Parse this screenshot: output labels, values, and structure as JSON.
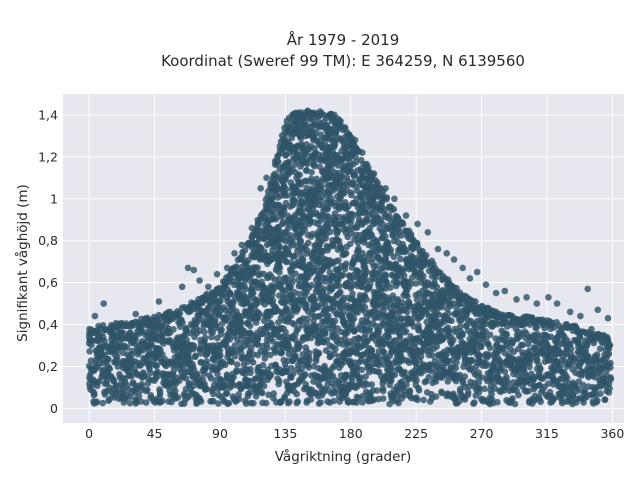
{
  "chart_data": {
    "type": "scatter",
    "title": "År 1979 - 2019",
    "subtitle": "Koordinat (Sweref 99 TM): E 364259, N 6139560",
    "xlabel": "Vågriktning (grader)",
    "ylabel": "Signifikant våghöjd (m)",
    "xlim": [
      -18,
      368
    ],
    "ylim": [
      -0.07,
      1.5
    ],
    "x_ticks": [
      0,
      45,
      90,
      135,
      180,
      225,
      270,
      315,
      360
    ],
    "x_tick_labels": [
      "0",
      "45",
      "90",
      "135",
      "180",
      "225",
      "270",
      "315",
      "360"
    ],
    "y_ticks": [
      0,
      0.2,
      0.4,
      0.6,
      0.8,
      1.0,
      1.2,
      1.4
    ],
    "y_tick_labels": [
      "0",
      "0,2",
      "0,4",
      "0,6",
      "0,8",
      "1",
      "1,2",
      "1,4"
    ],
    "grid": true,
    "marker_color": "#2f5468",
    "plot_background": "#e6e7ef",
    "upper_envelope": {
      "x": [
        0,
        10,
        20,
        30,
        45,
        60,
        75,
        90,
        100,
        110,
        120,
        125,
        130,
        135,
        140,
        150,
        160,
        170,
        180,
        190,
        200,
        210,
        225,
        240,
        255,
        270,
        285,
        300,
        315,
        330,
        345,
        355,
        360
      ],
      "y": [
        0.38,
        0.4,
        0.41,
        0.42,
        0.44,
        0.47,
        0.52,
        0.58,
        0.68,
        0.8,
        0.96,
        1.08,
        1.22,
        1.37,
        1.41,
        1.42,
        1.42,
        1.4,
        1.3,
        1.18,
        1.06,
        0.95,
        0.8,
        0.66,
        0.56,
        0.49,
        0.45,
        0.44,
        0.42,
        0.4,
        0.38,
        0.35,
        0.32
      ]
    },
    "lower_envelope_y": 0.02,
    "outliers": [
      {
        "x": 4,
        "y": 0.44
      },
      {
        "x": 10,
        "y": 0.5
      },
      {
        "x": 32,
        "y": 0.45
      },
      {
        "x": 48,
        "y": 0.51
      },
      {
        "x": 55,
        "y": 0.42
      },
      {
        "x": 64,
        "y": 0.58
      },
      {
        "x": 68,
        "y": 0.67
      },
      {
        "x": 72,
        "y": 0.66
      },
      {
        "x": 76,
        "y": 0.61
      },
      {
        "x": 82,
        "y": 0.58
      },
      {
        "x": 88,
        "y": 0.64
      },
      {
        "x": 95,
        "y": 0.67
      },
      {
        "x": 100,
        "y": 0.74
      },
      {
        "x": 105,
        "y": 0.78
      },
      {
        "x": 112,
        "y": 0.86
      },
      {
        "x": 118,
        "y": 1.05
      },
      {
        "x": 122,
        "y": 1.1
      },
      {
        "x": 128,
        "y": 1.18
      },
      {
        "x": 176,
        "y": 1.34
      },
      {
        "x": 183,
        "y": 1.28
      },
      {
        "x": 188,
        "y": 1.22
      },
      {
        "x": 196,
        "y": 1.12
      },
      {
        "x": 204,
        "y": 1.05
      },
      {
        "x": 210,
        "y": 1.0
      },
      {
        "x": 218,
        "y": 0.92
      },
      {
        "x": 226,
        "y": 0.88
      },
      {
        "x": 233,
        "y": 0.84
      },
      {
        "x": 240,
        "y": 0.76
      },
      {
        "x": 246,
        "y": 0.74
      },
      {
        "x": 251,
        "y": 0.71
      },
      {
        "x": 257,
        "y": 0.67
      },
      {
        "x": 262,
        "y": 0.62
      },
      {
        "x": 267,
        "y": 0.65
      },
      {
        "x": 273,
        "y": 0.59
      },
      {
        "x": 280,
        "y": 0.55
      },
      {
        "x": 286,
        "y": 0.56
      },
      {
        "x": 294,
        "y": 0.52
      },
      {
        "x": 301,
        "y": 0.53
      },
      {
        "x": 308,
        "y": 0.5
      },
      {
        "x": 316,
        "y": 0.53
      },
      {
        "x": 322,
        "y": 0.5
      },
      {
        "x": 331,
        "y": 0.46
      },
      {
        "x": 338,
        "y": 0.44
      },
      {
        "x": 343,
        "y": 0.57
      },
      {
        "x": 350,
        "y": 0.47
      },
      {
        "x": 357,
        "y": 0.43
      }
    ]
  }
}
